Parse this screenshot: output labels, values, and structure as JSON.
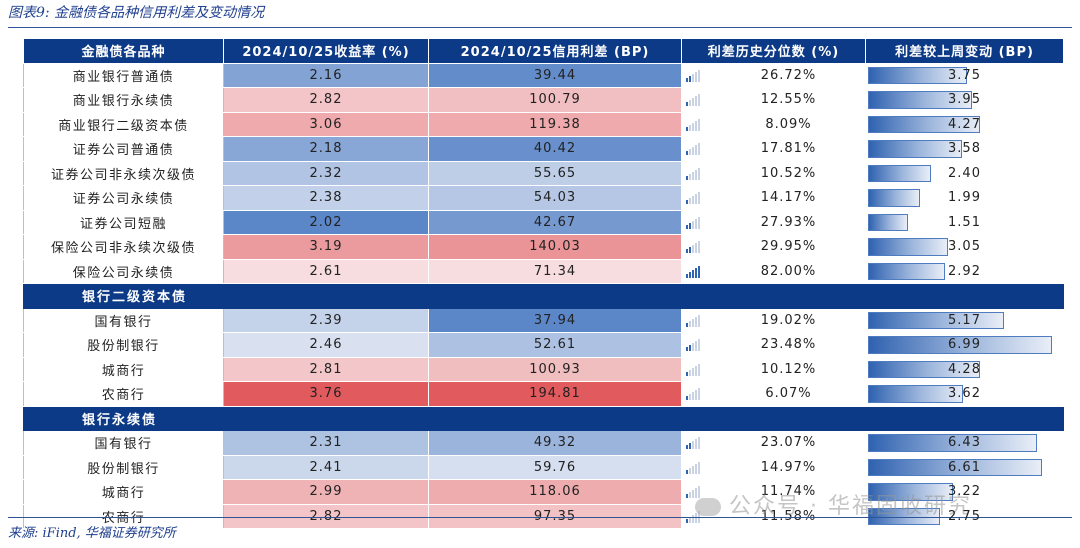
{
  "title": "图表9: 金融债各品种信用利差及变动情况",
  "source": "来源: iFind, 华福证券研究所",
  "watermark": "公众号 · 华福固收研究",
  "colors": {
    "header": "#0d3a86",
    "low": "#2f62b0",
    "high": "#d9534f"
  },
  "columns": [
    "金融债各品种",
    "2024/10/25收益率 (%)",
    "2024/10/25信用利差 (BP)",
    "利差历史分位数 (%)",
    "利差较上周变动 (BP)"
  ],
  "group1_rows": [
    {
      "name": "商业银行普通债",
      "yield": "2.16",
      "spread": "39.44",
      "pct": "26.72%",
      "chg": "3.75",
      "yv": 2.16,
      "sv": 39.44,
      "pv": 26.72,
      "cv": 3.75
    },
    {
      "name": "商业银行永续债",
      "yield": "2.82",
      "spread": "100.79",
      "pct": "12.55%",
      "chg": "3.95",
      "yv": 2.82,
      "sv": 100.79,
      "pv": 12.55,
      "cv": 3.95
    },
    {
      "name": "商业银行二级资本债",
      "yield": "3.06",
      "spread": "119.38",
      "pct": "8.09%",
      "chg": "4.27",
      "yv": 3.06,
      "sv": 119.38,
      "pv": 8.09,
      "cv": 4.27
    },
    {
      "name": "证券公司普通债",
      "yield": "2.18",
      "spread": "40.42",
      "pct": "17.81%",
      "chg": "3.58",
      "yv": 2.18,
      "sv": 40.42,
      "pv": 17.81,
      "cv": 3.58
    },
    {
      "name": "证券公司非永续次级债",
      "yield": "2.32",
      "spread": "55.65",
      "pct": "10.52%",
      "chg": "2.40",
      "yv": 2.32,
      "sv": 55.65,
      "pv": 10.52,
      "cv": 2.4
    },
    {
      "name": "证券公司永续债",
      "yield": "2.38",
      "spread": "54.03",
      "pct": "14.17%",
      "chg": "1.99",
      "yv": 2.38,
      "sv": 54.03,
      "pv": 14.17,
      "cv": 1.99
    },
    {
      "name": "证券公司短融",
      "yield": "2.02",
      "spread": "42.67",
      "pct": "27.93%",
      "chg": "1.51",
      "yv": 2.02,
      "sv": 42.67,
      "pv": 27.93,
      "cv": 1.51
    },
    {
      "name": "保险公司非永续次级债",
      "yield": "3.19",
      "spread": "140.03",
      "pct": "29.95%",
      "chg": "3.05",
      "yv": 3.19,
      "sv": 140.03,
      "pv": 29.95,
      "cv": 3.05
    },
    {
      "name": "保险公司永续债",
      "yield": "2.61",
      "spread": "71.34",
      "pct": "82.00%",
      "chg": "2.92",
      "yv": 2.61,
      "sv": 71.34,
      "pv": 82.0,
      "cv": 2.92
    }
  ],
  "section2": "银行二级资本债",
  "group2_rows": [
    {
      "name": "国有银行",
      "yield": "2.39",
      "spread": "37.94",
      "pct": "19.02%",
      "chg": "5.17",
      "yv": 2.39,
      "sv": 37.94,
      "pv": 19.02,
      "cv": 5.17
    },
    {
      "name": "股份制银行",
      "yield": "2.46",
      "spread": "52.61",
      "pct": "23.48%",
      "chg": "6.99",
      "yv": 2.46,
      "sv": 52.61,
      "pv": 23.48,
      "cv": 6.99
    },
    {
      "name": "城商行",
      "yield": "2.81",
      "spread": "100.93",
      "pct": "10.12%",
      "chg": "4.28",
      "yv": 2.81,
      "sv": 100.93,
      "pv": 10.12,
      "cv": 4.28
    },
    {
      "name": "农商行",
      "yield": "3.76",
      "spread": "194.81",
      "pct": "6.07%",
      "chg": "3.62",
      "yv": 3.76,
      "sv": 194.81,
      "pv": 6.07,
      "cv": 3.62
    }
  ],
  "section3": "银行永续债",
  "group3_rows": [
    {
      "name": "国有银行",
      "yield": "2.31",
      "spread": "49.32",
      "pct": "23.07%",
      "chg": "6.43",
      "yv": 2.31,
      "sv": 49.32,
      "pv": 23.07,
      "cv": 6.43
    },
    {
      "name": "股份制银行",
      "yield": "2.41",
      "spread": "59.76",
      "pct": "14.97%",
      "chg": "6.61",
      "yv": 2.41,
      "sv": 59.76,
      "pv": 14.97,
      "cv": 6.61
    },
    {
      "name": "城商行",
      "yield": "2.99",
      "spread": "118.06",
      "pct": "11.74%",
      "chg": "3.22",
      "yv": 2.99,
      "sv": 118.06,
      "pv": 11.74,
      "cv": 3.22
    },
    {
      "name": "农商行",
      "yield": "2.82",
      "spread": "97.35",
      "pct": "11.58%",
      "chg": "2.75",
      "yv": 2.82,
      "sv": 97.35,
      "pv": 11.58,
      "cv": 2.75
    }
  ]
}
